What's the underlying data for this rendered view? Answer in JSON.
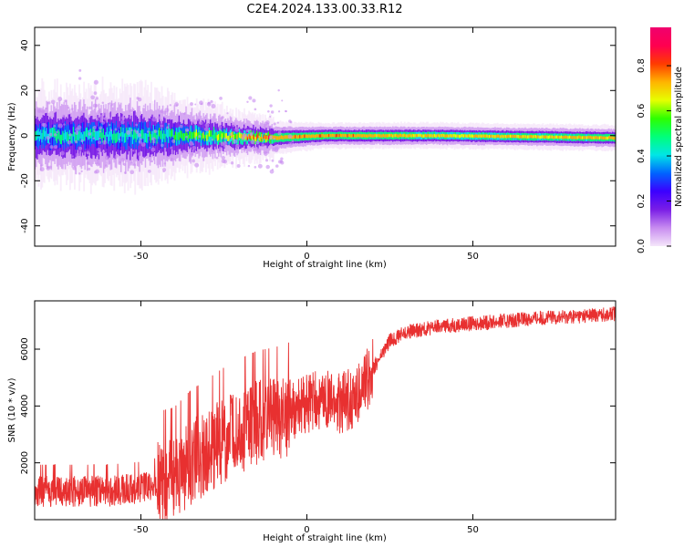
{
  "figure": {
    "title": "C2E4.2024.133.00.33.R12"
  },
  "colors": {
    "snr_line": "#e83030",
    "axis": "#000000",
    "colormap": [
      "#f5e6fa",
      "#c88cf0",
      "#7a1ee6",
      "#3c00ff",
      "#0064ff",
      "#00e6e6",
      "#00ff7a",
      "#2dff00",
      "#e6ff00",
      "#ffb400",
      "#ff3c00",
      "#ff0050",
      "#f0006e"
    ]
  },
  "chart_data": [
    {
      "type": "heatmap",
      "title": "C2E4.2024.133.00.33.R12",
      "xlabel": "Height of straight line (km)",
      "ylabel": "Frequency (Hz)",
      "xlim": [
        -82,
        93
      ],
      "ylim": [
        -49,
        48
      ],
      "xticks": [
        -50,
        0,
        50
      ],
      "yticks": [
        -40,
        -20,
        0,
        20,
        40
      ],
      "colorbar": {
        "label": "Normalized spectral amplitude",
        "range": [
          0.0,
          0.97
        ],
        "ticks": [
          0.0,
          0.2,
          0.4,
          0.6,
          0.8
        ]
      },
      "band": {
        "description_points": [
          {
            "x": -82,
            "center_hz": 0,
            "half_width_hz": 6,
            "peak": 0.45
          },
          {
            "x": -50,
            "center_hz": 0,
            "half_width_hz": 6,
            "peak": 0.45
          },
          {
            "x": -30,
            "center_hz": 0,
            "half_width_hz": 4,
            "peak": 0.55
          },
          {
            "x": -10,
            "center_hz": -1,
            "half_width_hz": 2.5,
            "peak": 0.8
          },
          {
            "x": 5,
            "center_hz": 0,
            "half_width_hz": 2,
            "peak": 0.85
          },
          {
            "x": 40,
            "center_hz": 0,
            "half_width_hz": 2,
            "peak": 0.75
          },
          {
            "x": 93,
            "center_hz": -1,
            "half_width_hz": 2,
            "peak": 0.8
          }
        ]
      }
    },
    {
      "type": "line",
      "xlabel": "Height of straight line (km)",
      "ylabel": "SNR (10 * v/v)",
      "xlim": [
        -82,
        93
      ],
      "ylim": [
        0,
        7700
      ],
      "xticks": [
        -50,
        0,
        50
      ],
      "yticks": [
        2000,
        4000,
        6000
      ],
      "series": [
        {
          "x": [
            -82,
            -70,
            -60,
            -50,
            -40,
            -35,
            -30,
            -25,
            -20,
            -15,
            -10,
            -5,
            0,
            5,
            10,
            15,
            20,
            25,
            30,
            40,
            50,
            60,
            70,
            80,
            93
          ],
          "values": [
            1000,
            1000,
            1000,
            1100,
            1400,
            2000,
            2400,
            2800,
            3100,
            3400,
            3500,
            3700,
            4100,
            4200,
            4100,
            4300,
            5300,
            6300,
            6600,
            6800,
            6900,
            7000,
            7100,
            7150,
            7250
          ]
        }
      ]
    }
  ]
}
